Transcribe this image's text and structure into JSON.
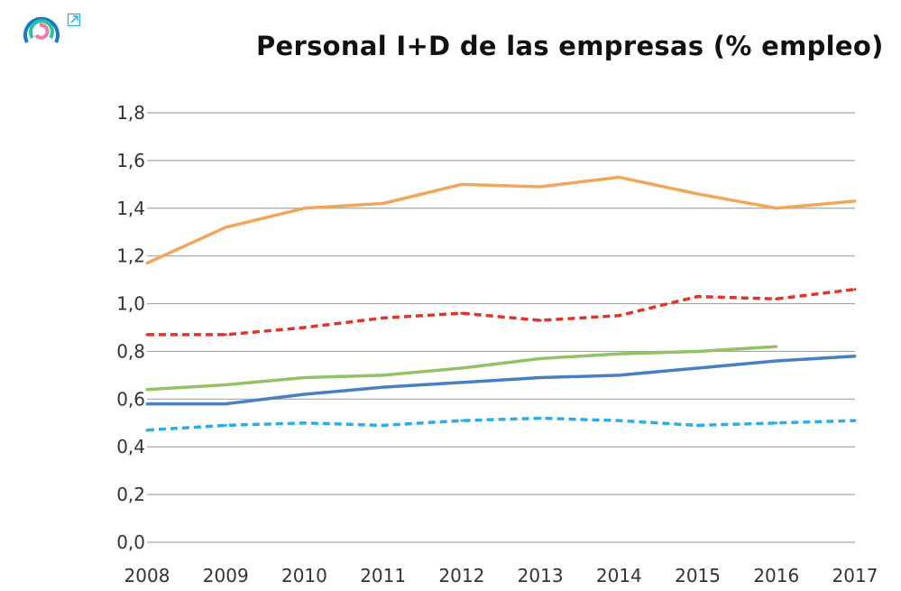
{
  "logo": {
    "name": "circles-logo",
    "colors": [
      "#1a7ac8",
      "#2cc4a0",
      "#f07aa8"
    ]
  },
  "external_link_icon": "arrow-up-right-icon",
  "chart_data": {
    "type": "line",
    "title": "Personal I+D de las empresas (% empleo)",
    "xlabel": "",
    "ylabel": "",
    "categories": [
      "2008",
      "2009",
      "2010",
      "2011",
      "2012",
      "2013",
      "2014",
      "2015",
      "2016",
      "2017"
    ],
    "ylim": [
      0,
      1.8
    ],
    "yticks": [
      "0,0",
      "0,2",
      "0,4",
      "0,6",
      "0,8",
      "1,0",
      "1,2",
      "1,4",
      "1,6",
      "1,8"
    ],
    "grid": true,
    "series": [
      {
        "color": "#f2a65a",
        "dash": false,
        "values": [
          1.17,
          1.32,
          1.4,
          1.42,
          1.5,
          1.49,
          1.53,
          1.46,
          1.4,
          1.43
        ]
      },
      {
        "color": "#e0352b",
        "dash": true,
        "values": [
          0.87,
          0.87,
          0.9,
          0.94,
          0.96,
          0.93,
          0.95,
          1.03,
          1.02,
          1.06
        ]
      },
      {
        "color": "#93c265",
        "dash": false,
        "values": [
          0.64,
          0.66,
          0.69,
          0.7,
          0.73,
          0.77,
          0.79,
          0.8,
          0.82,
          null
        ]
      },
      {
        "color": "#4a7fc1",
        "dash": false,
        "values": [
          0.58,
          0.58,
          0.62,
          0.65,
          0.67,
          0.69,
          0.7,
          0.73,
          0.76,
          0.78
        ]
      },
      {
        "color": "#2aaee6",
        "dash": true,
        "values": [
          0.47,
          0.49,
          0.5,
          0.49,
          0.51,
          0.52,
          0.51,
          0.49,
          0.5,
          0.51
        ]
      }
    ]
  }
}
